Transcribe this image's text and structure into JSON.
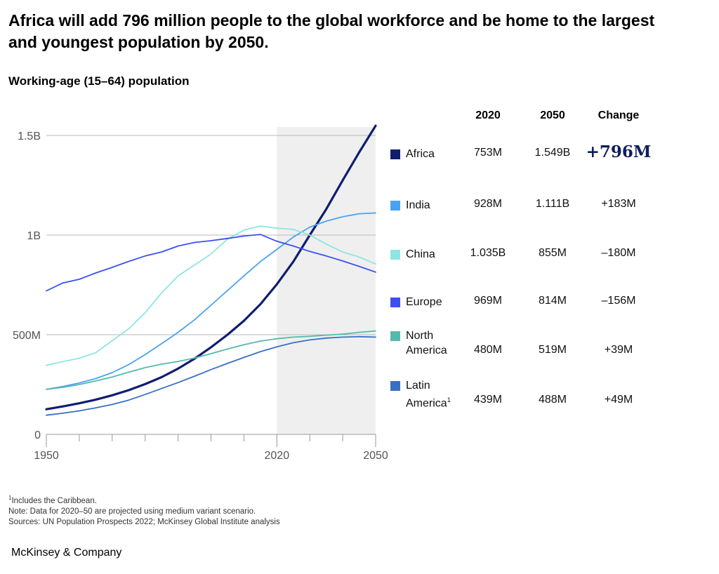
{
  "title": "Africa will add 796 million people to the global workforce and be home to the largest and youngest population by 2050.",
  "subtitle": "Working-age (15–64) population",
  "table_headers": [
    "2020",
    "2050",
    "Change"
  ],
  "footnotes": {
    "sup": "1",
    "line1": "Includes the Caribbean.",
    "line2": "Note: Data for 2020–50 are projected using medium variant scenario.",
    "line3": "Sources: UN Population Prospects 2022; McKinsey Global Institute analysis"
  },
  "brand": "McKinsey & Company",
  "legend_rows": [
    {
      "name_lines": [
        "Africa"
      ],
      "v2020": "753M",
      "v2050": "1.549B",
      "change": "+796M",
      "color": "#0f1e6e",
      "emphasis": true
    },
    {
      "name_lines": [
        "India"
      ],
      "v2020": "928M",
      "v2050": "1.111B",
      "change": "+183M",
      "color": "#4aa3ee"
    },
    {
      "name_lines": [
        "China"
      ],
      "v2020": "1.035B",
      "v2050": "855M",
      "change": "–180M",
      "color": "#8ee5e3"
    },
    {
      "name_lines": [
        "Europe"
      ],
      "v2020": "969M",
      "v2050": "814M",
      "change": "–156M",
      "color": "#3a50f0"
    },
    {
      "name_lines": [
        "North",
        "America"
      ],
      "v2020": "480M",
      "v2050": "519M",
      "change": "+39M",
      "color": "#55b9ac"
    },
    {
      "name_lines": [
        "Latin",
        "America"
      ],
      "sup": "1",
      "v2020": "439M",
      "v2050": "488M",
      "change": "+49M",
      "color": "#3a70c4"
    }
  ],
  "chart_data": {
    "type": "line",
    "xlim": [
      1950,
      2050
    ],
    "ylim": [
      0,
      1500
    ],
    "y_unit": "millions",
    "projection_shading": [
      2020,
      2050
    ],
    "y_ticks": [
      {
        "value": 0,
        "label": "0"
      },
      {
        "value": 500,
        "label": "500M"
      },
      {
        "value": 1000,
        "label": "1B"
      },
      {
        "value": 1500,
        "label": "1.5B"
      }
    ],
    "x_tick_labels": [
      {
        "value": 1950,
        "label": "1950"
      },
      {
        "value": 2020,
        "label": "2020"
      },
      {
        "value": 2050,
        "label": "2050"
      }
    ],
    "x_minor_ticks": [
      1950,
      1960,
      1970,
      1980,
      1990,
      2000,
      2010,
      2020,
      2030,
      2040,
      2050
    ],
    "x": [
      1950,
      1955,
      1960,
      1965,
      1970,
      1975,
      1980,
      1985,
      1990,
      1995,
      2000,
      2005,
      2010,
      2015,
      2020,
      2025,
      2030,
      2035,
      2040,
      2045,
      2050
    ],
    "series": [
      {
        "name": "Africa",
        "color": "#0f1e6e",
        "width": 3.2,
        "values": [
          126,
          140,
          156,
          174,
          196,
          222,
          252,
          287,
          330,
          380,
          437,
          500,
          570,
          653,
          753,
          867,
          1000,
          1130,
          1275,
          1415,
          1549
        ]
      },
      {
        "name": "India",
        "color": "#4aa3ee",
        "width": 1.8,
        "values": [
          226,
          240,
          258,
          280,
          310,
          350,
          400,
          455,
          512,
          575,
          648,
          722,
          795,
          867,
          928,
          990,
          1040,
          1070,
          1092,
          1107,
          1111
        ]
      },
      {
        "name": "China",
        "color": "#8ee5e3",
        "width": 1.8,
        "values": [
          346,
          365,
          382,
          410,
          470,
          530,
          610,
          710,
          795,
          850,
          905,
          980,
          1025,
          1045,
          1035,
          1028,
          1000,
          955,
          915,
          890,
          855
        ]
      },
      {
        "name": "Europe",
        "color": "#3a50f0",
        "width": 1.8,
        "values": [
          720,
          760,
          778,
          810,
          838,
          868,
          895,
          915,
          945,
          963,
          972,
          983,
          995,
          1003,
          969,
          945,
          918,
          895,
          870,
          843,
          814
        ]
      },
      {
        "name": "North America",
        "color": "#55b9ac",
        "width": 1.8,
        "values": [
          226,
          236,
          250,
          268,
          288,
          312,
          335,
          352,
          366,
          383,
          405,
          428,
          450,
          468,
          480,
          488,
          492,
          498,
          503,
          512,
          519
        ]
      },
      {
        "name": "Latin America",
        "color": "#3a70c4",
        "width": 1.8,
        "values": [
          96,
          106,
          118,
          133,
          150,
          172,
          200,
          230,
          260,
          292,
          325,
          356,
          386,
          415,
          439,
          460,
          474,
          483,
          488,
          490,
          488
        ]
      }
    ]
  }
}
